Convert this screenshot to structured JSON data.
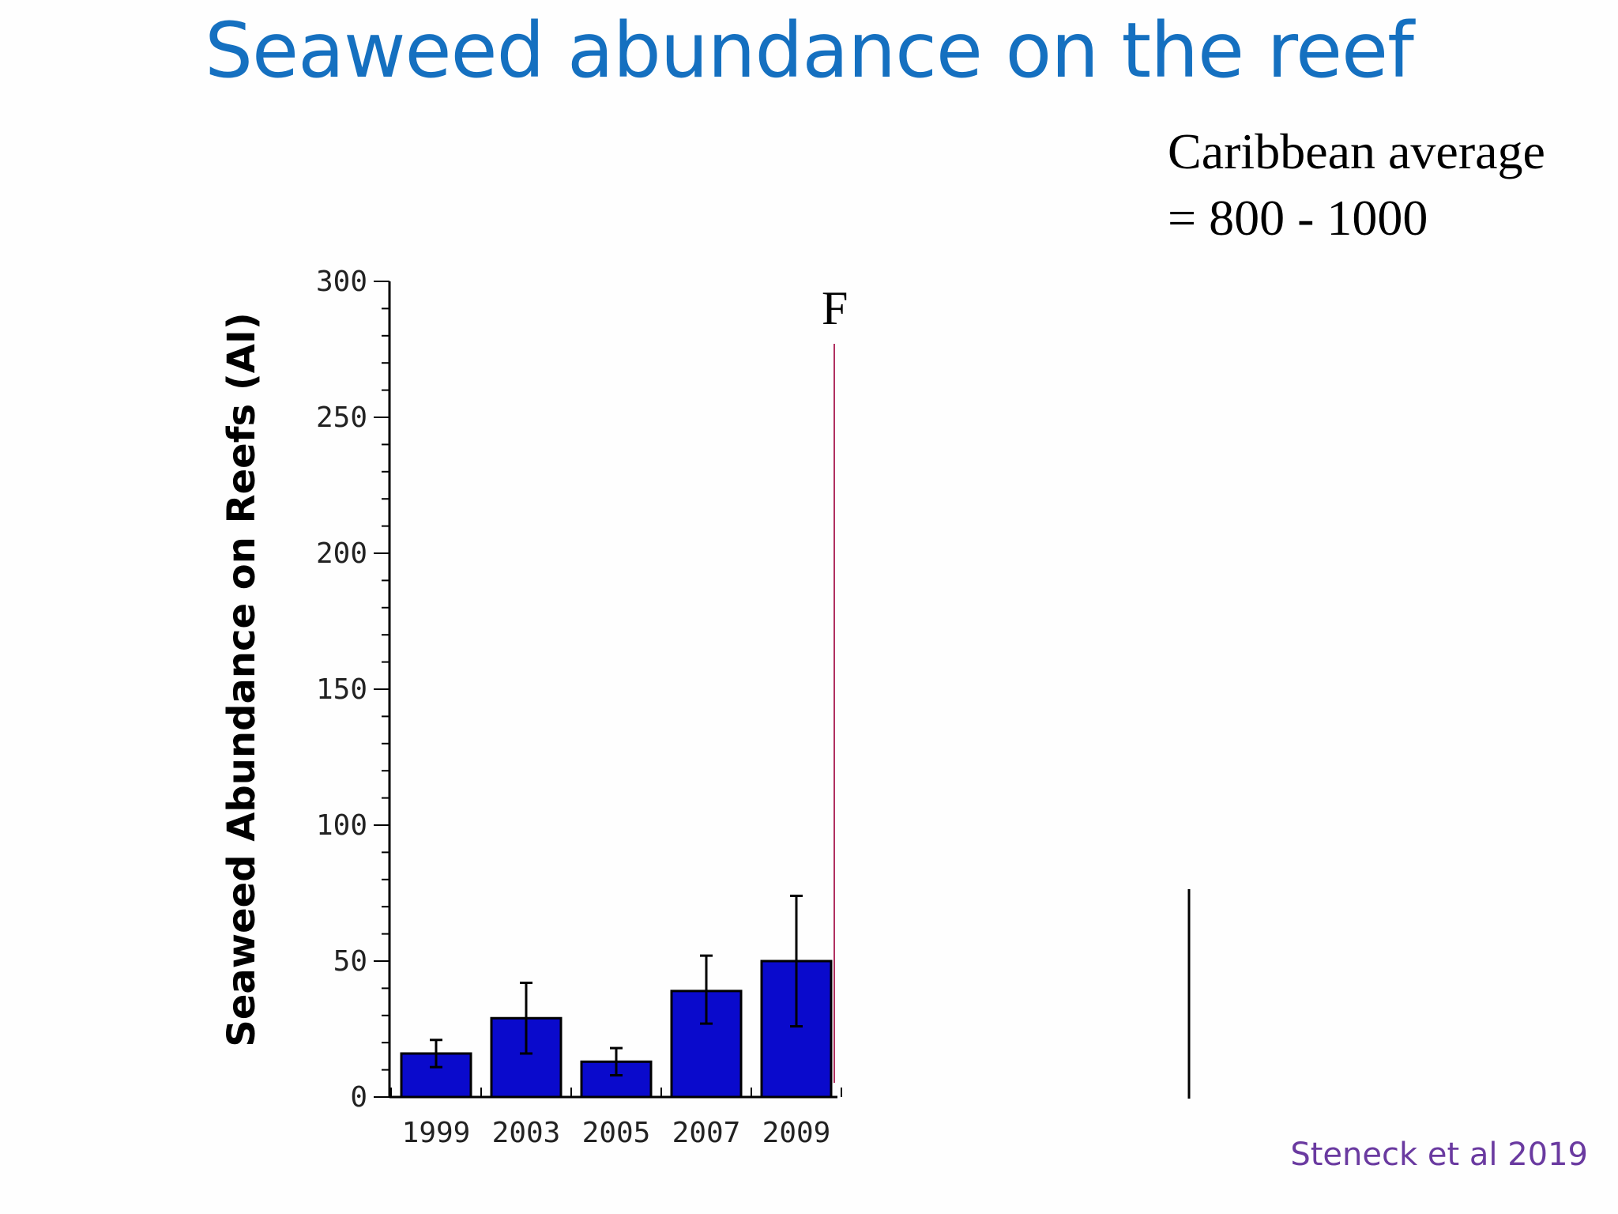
{
  "slide": {
    "title": "Seaweed abundance on the reef",
    "note_line1": "Caribbean average",
    "note_line2": "= 800 - 1000",
    "citation": "Steneck et al 2019",
    "panel_letter": "F"
  },
  "colors": {
    "title": "#1570c0",
    "bar": "#0a0acc",
    "citation": "#6a3aa0",
    "divider": "#b03060"
  },
  "chart_data": {
    "type": "bar",
    "title": "",
    "xlabel": "",
    "ylabel": "Seaweed Abundance on Reefs (AI)",
    "categories": [
      "1999",
      "2003",
      "2005",
      "2007",
      "2009"
    ],
    "values": [
      16,
      29,
      13,
      39,
      50
    ],
    "error_bars": [
      {
        "low": 11,
        "high": 21
      },
      {
        "low": 16,
        "high": 42
      },
      {
        "low": 8,
        "high": 18
      },
      {
        "low": 27,
        "high": 52
      },
      {
        "low": 26,
        "high": 74
      }
    ],
    "ylim": [
      0,
      300
    ],
    "yticks": [
      0,
      50,
      100,
      150,
      200,
      250,
      300
    ],
    "grid": false
  }
}
